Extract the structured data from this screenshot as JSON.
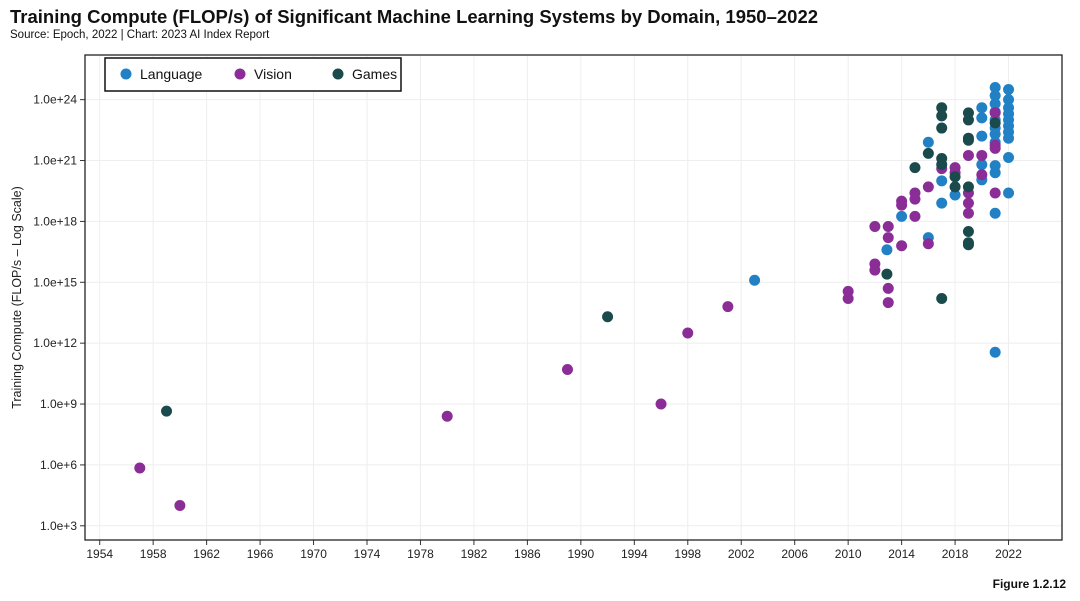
{
  "title": "Training Compute (FLOP/s) of Significant Machine Learning Systems by Domain, 1950–2022",
  "subtitle": "Source: Epoch, 2022 | Chart: 2023 AI Index Report",
  "figure_label": "Figure 1.2.12",
  "chart_data": {
    "type": "scatter",
    "ylabel": "Training Compute (FLOP/s – Log Scale)",
    "xlabel": "",
    "yscale": "log",
    "x_ticks": [
      "1954",
      "1958",
      "1962",
      "1966",
      "1970",
      "1974",
      "1978",
      "1982",
      "1986",
      "1990",
      "1994",
      "1998",
      "2002",
      "2006",
      "2010",
      "2014",
      "2018",
      "2022"
    ],
    "y_ticks": [
      "1.0e+3",
      "1.0e+6",
      "1.0e+9",
      "1.0e+12",
      "1.0e+15",
      "1.0e+18",
      "1.0e+21",
      "1.0e+24"
    ],
    "xlim": [
      1952.9,
      2026
    ],
    "ylim_log10": [
      2.3,
      26.2
    ],
    "grid": true,
    "legend_position": "top-left",
    "colors": {
      "Language": "#2281c4",
      "Vision": "#8b2d97",
      "Games": "#1b4a4c"
    },
    "series": [
      {
        "name": "Language",
        "points": [
          [
            2003,
            15.1
          ],
          [
            2012.9,
            16.6
          ],
          [
            2014,
            18.25
          ],
          [
            2016,
            21.9
          ],
          [
            2016,
            17.2
          ],
          [
            2017,
            20.0
          ],
          [
            2017,
            18.9
          ],
          [
            2018,
            19.3
          ],
          [
            2020,
            23.6
          ],
          [
            2020,
            23.1
          ],
          [
            2020,
            22.2
          ],
          [
            2020,
            20.8
          ],
          [
            2020,
            20.05
          ],
          [
            2021,
            24.6
          ],
          [
            2021,
            24.2
          ],
          [
            2021,
            23.8
          ],
          [
            2021,
            23.4
          ],
          [
            2021,
            23.0
          ],
          [
            2021,
            22.6
          ],
          [
            2021,
            22.3
          ],
          [
            2021,
            21.9
          ],
          [
            2021,
            20.75
          ],
          [
            2021,
            20.4
          ],
          [
            2021,
            18.4
          ],
          [
            2021,
            11.55
          ],
          [
            2022,
            24.5
          ],
          [
            2022,
            24.0
          ],
          [
            2022,
            23.6
          ],
          [
            2022,
            23.3
          ],
          [
            2022,
            23.0
          ],
          [
            2022,
            22.7
          ],
          [
            2022,
            22.4
          ],
          [
            2022,
            22.1
          ],
          [
            2022,
            21.15
          ],
          [
            2022,
            19.4
          ]
        ]
      },
      {
        "name": "Vision",
        "points": [
          [
            1957,
            5.85
          ],
          [
            1960,
            4.0
          ],
          [
            1980,
            8.4
          ],
          [
            1989,
            10.7
          ],
          [
            1996,
            9.0
          ],
          [
            1998,
            12.5
          ],
          [
            2001,
            13.8
          ],
          [
            2010,
            14.55
          ],
          [
            2010,
            14.2
          ],
          [
            2012,
            17.75
          ],
          [
            2012,
            15.9
          ],
          [
            2012,
            15.6
          ],
          [
            2013,
            17.75
          ],
          [
            2013,
            17.2
          ],
          [
            2013,
            14.7
          ],
          [
            2013,
            14.0
          ],
          [
            2014,
            19.0
          ],
          [
            2014,
            18.8
          ],
          [
            2014,
            16.8
          ],
          [
            2015,
            19.4
          ],
          [
            2015,
            19.1
          ],
          [
            2015,
            18.25
          ],
          [
            2016,
            19.7
          ],
          [
            2016,
            16.9
          ],
          [
            2017,
            20.6
          ],
          [
            2018,
            20.65
          ],
          [
            2018,
            20.4
          ],
          [
            2019,
            21.25
          ],
          [
            2019,
            19.4
          ],
          [
            2019,
            18.9
          ],
          [
            2019,
            18.4
          ],
          [
            2020,
            21.25
          ],
          [
            2020,
            20.3
          ],
          [
            2021,
            23.35
          ],
          [
            2021,
            21.75
          ],
          [
            2021,
            21.6
          ],
          [
            2021,
            19.4
          ]
        ]
      },
      {
        "name": "Games",
        "points": [
          [
            1959,
            8.65
          ],
          [
            1992,
            13.3
          ],
          [
            2012.9,
            15.4
          ],
          [
            2015,
            20.65
          ],
          [
            2016,
            21.35
          ],
          [
            2017,
            23.6
          ],
          [
            2017,
            23.2
          ],
          [
            2017,
            22.6
          ],
          [
            2017,
            21.1
          ],
          [
            2017,
            20.8
          ],
          [
            2017,
            14.2
          ],
          [
            2018,
            20.2
          ],
          [
            2018,
            19.7
          ],
          [
            2019,
            23.35
          ],
          [
            2019,
            23.0
          ],
          [
            2019,
            22.1
          ],
          [
            2019,
            22.0
          ],
          [
            2019,
            19.7
          ],
          [
            2019,
            17.5
          ],
          [
            2019,
            16.95
          ],
          [
            2019,
            16.85
          ],
          [
            2021,
            22.85
          ]
        ]
      }
    ]
  }
}
